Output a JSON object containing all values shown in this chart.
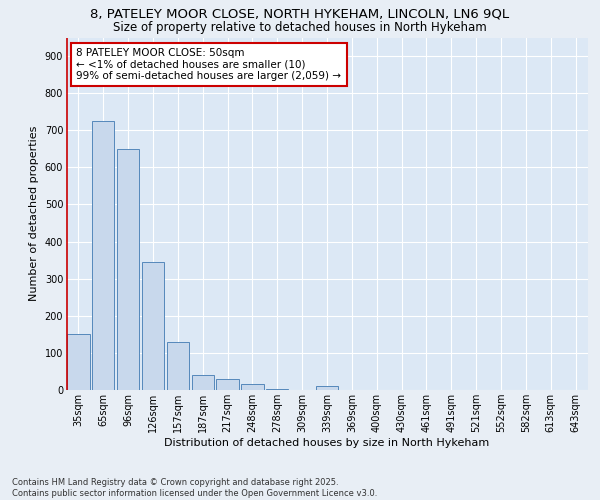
{
  "title_line1": "8, PATELEY MOOR CLOSE, NORTH HYKEHAM, LINCOLN, LN6 9QL",
  "title_line2": "Size of property relative to detached houses in North Hykeham",
  "xlabel": "Distribution of detached houses by size in North Hykeham",
  "ylabel": "Number of detached properties",
  "categories": [
    "35sqm",
    "65sqm",
    "96sqm",
    "126sqm",
    "157sqm",
    "187sqm",
    "217sqm",
    "248sqm",
    "278sqm",
    "309sqm",
    "339sqm",
    "369sqm",
    "400sqm",
    "430sqm",
    "461sqm",
    "491sqm",
    "521sqm",
    "552sqm",
    "582sqm",
    "613sqm",
    "643sqm"
  ],
  "values": [
    150,
    725,
    650,
    345,
    130,
    40,
    30,
    15,
    2,
    0,
    10,
    0,
    0,
    0,
    0,
    0,
    0,
    0,
    0,
    0,
    0
  ],
  "bar_color": "#c8d8ec",
  "bar_edge_color": "#5588bb",
  "annotation_box_text": "8 PATELEY MOOR CLOSE: 50sqm\n← <1% of detached houses are smaller (10)\n99% of semi-detached houses are larger (2,059) →",
  "annotation_box_color": "white",
  "annotation_box_edge_color": "#cc0000",
  "marker_line_color": "#cc0000",
  "ylim": [
    0,
    950
  ],
  "yticks": [
    0,
    100,
    200,
    300,
    400,
    500,
    600,
    700,
    800,
    900
  ],
  "background_color": "#e8eef5",
  "plot_bg_color": "#dce8f5",
  "grid_color": "white",
  "footer_text": "Contains HM Land Registry data © Crown copyright and database right 2025.\nContains public sector information licensed under the Open Government Licence v3.0.",
  "title_fontsize": 9.5,
  "subtitle_fontsize": 8.5,
  "tick_fontsize": 7,
  "xlabel_fontsize": 8,
  "ylabel_fontsize": 8,
  "annotation_fontsize": 7.5,
  "footer_fontsize": 6
}
